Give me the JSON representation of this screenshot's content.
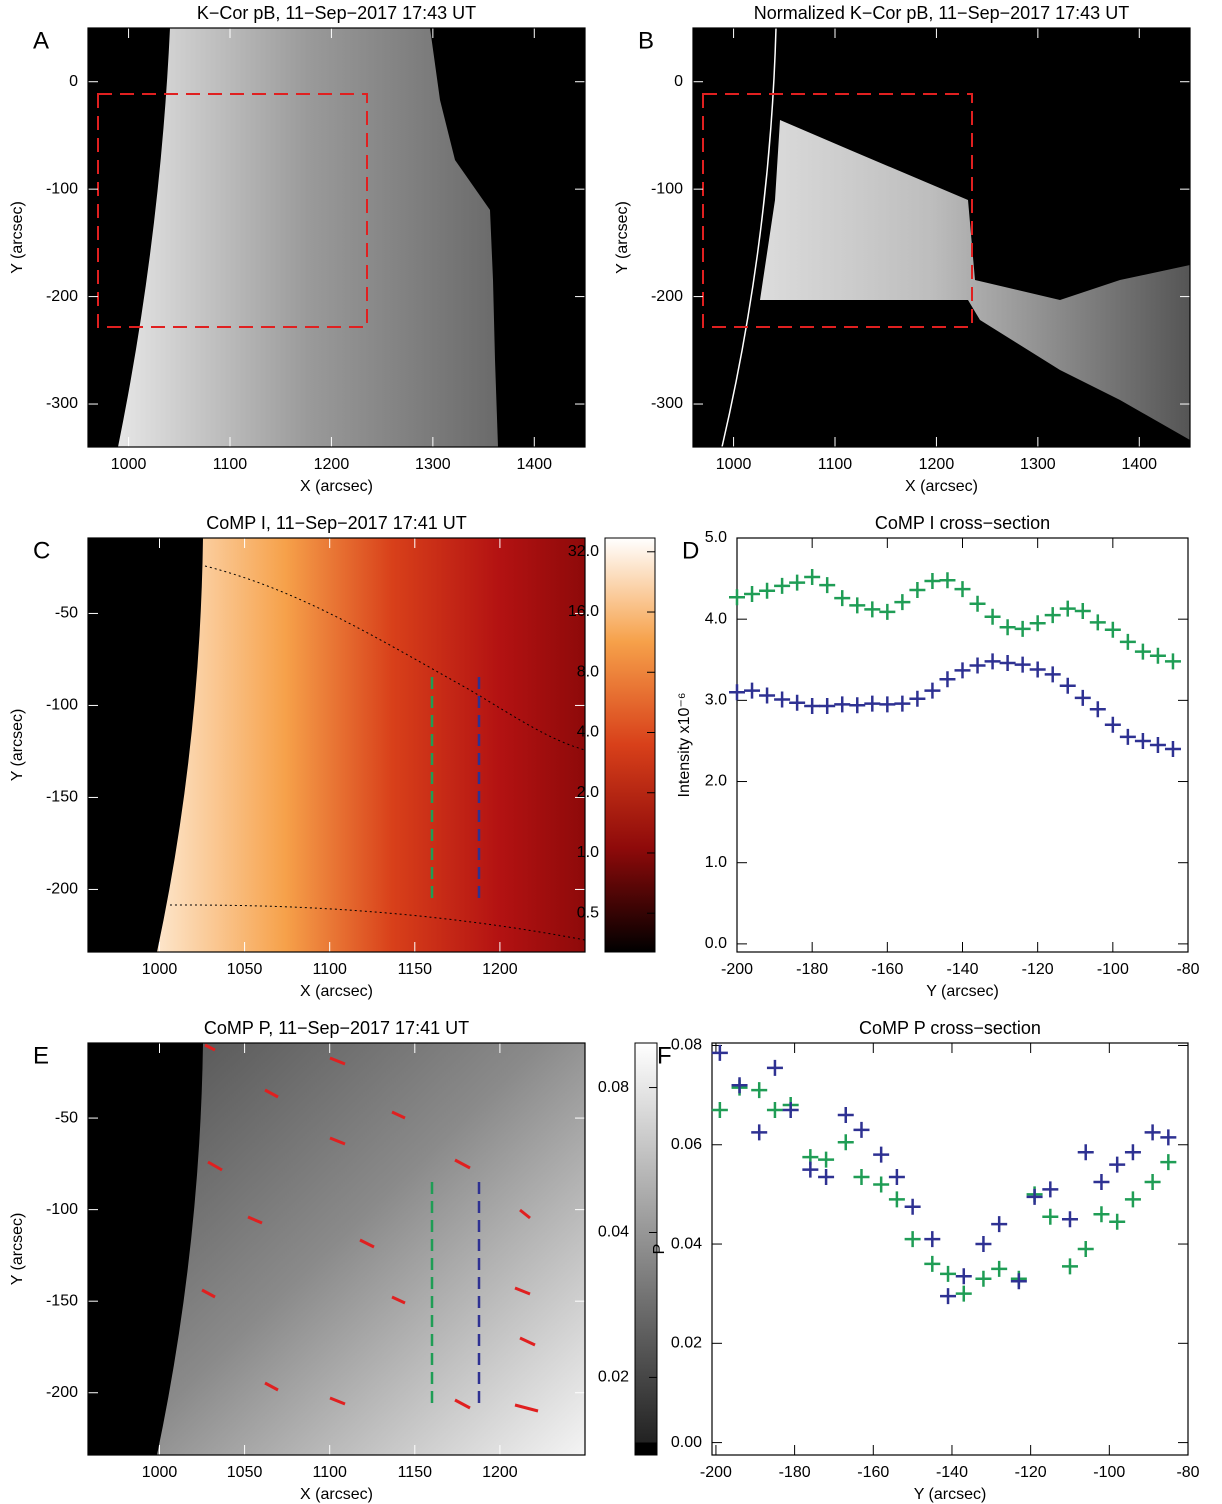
{
  "chart_data": [
    {
      "type": "image",
      "panel": "A",
      "title": "K−Cor pB, 11−Sep−2017 17:43 UT",
      "xlabel": "X (arcsec)",
      "ylabel": "Y (arcsec)",
      "xlim": [
        960,
        1450
      ],
      "ylim": [
        -340,
        50
      ],
      "xticks": [
        1000,
        1100,
        1200,
        1300,
        1400
      ],
      "yticks": [
        -300,
        -200,
        -100,
        0
      ]
    },
    {
      "type": "image",
      "panel": "B",
      "title": "Normalized K−Cor pB, 11−Sep−2017 17:43 UT",
      "xlabel": "X (arcsec)",
      "ylabel": "Y (arcsec)",
      "xlim": [
        960,
        1450
      ],
      "ylim": [
        -340,
        50
      ],
      "xticks": [
        1000,
        1100,
        1200,
        1300,
        1400
      ],
      "yticks": [
        -300,
        -200,
        -100,
        0
      ]
    },
    {
      "type": "image",
      "panel": "C",
      "title": "CoMP I, 11−Sep−2017 17:41 UT",
      "xlabel": "X (arcsec)",
      "ylabel": "Y (arcsec)",
      "xlim": [
        958,
        1250
      ],
      "ylim": [
        -234,
        -9
      ],
      "xticks": [
        1000,
        1050,
        1100,
        1150,
        1200
      ],
      "yticks": [
        -200,
        -150,
        -100,
        -50
      ],
      "colorbar": {
        "log": true,
        "lim": [
          0.32,
          37.5
        ],
        "ticks": [
          0.5,
          {
            "value": 1,
            "label": "1.0"
          },
          {
            "value": 2,
            "label": "2.0"
          },
          {
            "value": 4,
            "label": "4.0"
          },
          {
            "value": 8,
            "label": "8.0"
          },
          {
            "value": 16,
            "label": "16.0"
          },
          {
            "value": 32,
            "label": "32.0"
          }
        ]
      }
    },
    {
      "type": "scatter",
      "panel": "D",
      "title": "CoMP I cross−section",
      "xlabel": "Y (arcsec)",
      "ylabel": "Intensity x10⁻⁶",
      "xlim": [
        -200,
        -80
      ],
      "ylim": [
        -0.1,
        5.0
      ],
      "xticks": [
        -200,
        -180,
        -160,
        -140,
        -120,
        -100,
        -80
      ],
      "yticks": [
        {
          "value": 0,
          "label": "0.0"
        },
        {
          "value": 1,
          "label": "1.0"
        },
        {
          "value": 2,
          "label": "2.0"
        },
        {
          "value": 3,
          "label": "3.0"
        },
        {
          "value": 4,
          "label": "4.0"
        },
        {
          "value": 5,
          "label": "5.0"
        }
      ],
      "x": [
        -200,
        -196,
        -192,
        -188,
        -184,
        -180,
        -176,
        -172,
        -168,
        -164,
        -160,
        -156,
        -152,
        -148,
        -144,
        -140,
        -136,
        -132,
        -128,
        -124,
        -120,
        -116,
        -112,
        -108,
        -104,
        -100,
        -96,
        -92,
        -88,
        -84
      ],
      "series": [
        {
          "color": "#1f9d55",
          "values": [
            4.27,
            4.31,
            4.35,
            4.41,
            4.45,
            4.52,
            4.42,
            4.26,
            4.17,
            4.12,
            4.09,
            4.21,
            4.36,
            4.47,
            4.48,
            4.37,
            4.19,
            4.03,
            3.9,
            3.88,
            3.95,
            4.05,
            4.13,
            4.1,
            3.96,
            3.87,
            3.72,
            3.6,
            3.55,
            3.48
          ]
        },
        {
          "color": "#2e3192",
          "values": [
            3.1,
            3.12,
            3.06,
            3.01,
            2.97,
            2.93,
            2.93,
            2.95,
            2.94,
            2.96,
            2.95,
            2.96,
            3.02,
            3.12,
            3.26,
            3.37,
            3.43,
            3.48,
            3.46,
            3.44,
            3.38,
            3.32,
            3.18,
            3.03,
            2.89,
            2.7,
            2.55,
            2.5,
            2.45,
            2.4
          ]
        }
      ]
    },
    {
      "type": "image",
      "panel": "E",
      "title": "CoMP P, 11−Sep−2017 17:41 UT",
      "xlabel": "X (arcsec)",
      "ylabel": "Y (arcsec)",
      "xlim": [
        958,
        1250
      ],
      "ylim": [
        -234,
        -9
      ],
      "xticks": [
        1000,
        1050,
        1100,
        1150,
        1200
      ],
      "yticks": [
        -200,
        -150,
        -100,
        -50
      ],
      "colorbar": {
        "log": true,
        "lim": [
          0.0138,
          0.099
        ],
        "ticks": [
          0.02,
          0.04,
          0.08
        ]
      }
    },
    {
      "type": "scatter",
      "panel": "F",
      "title": "CoMP P cross−section",
      "xlabel": "Y (arcsec)",
      "ylabel": "P",
      "xlim": [
        -201,
        -80
      ],
      "ylim": [
        -0.0025,
        0.0805
      ],
      "xticks": [
        -200,
        -180,
        -160,
        -140,
        -120,
        -100,
        -80
      ],
      "yticks": [
        {
          "value": 0,
          "label": "0.00"
        },
        0.02,
        0.04,
        0.06,
        0.08
      ],
      "x": [
        -199,
        -194,
        -189,
        -185,
        -181,
        -176,
        -172,
        -167,
        -163,
        -158,
        -154,
        -150,
        -145,
        -141,
        -137,
        -132,
        -128,
        -123,
        -119,
        -115,
        -110,
        -106,
        -102,
        -98,
        -94,
        -89,
        -85
      ],
      "series": [
        {
          "color": "#1f9d55",
          "values": [
            0.067,
            0.0715,
            0.071,
            0.067,
            0.068,
            0.0575,
            0.057,
            0.0605,
            0.0535,
            0.052,
            0.049,
            0.041,
            0.036,
            0.034,
            0.03,
            0.033,
            0.035,
            0.033,
            0.05,
            0.0455,
            0.0355,
            0.039,
            0.046,
            0.0445,
            0.049,
            0.0525,
            0.0565
          ]
        },
        {
          "color": "#2e3192",
          "values": [
            0.0785,
            0.072,
            0.0625,
            0.0755,
            0.067,
            0.055,
            0.0535,
            0.066,
            0.063,
            0.058,
            0.0535,
            0.0475,
            0.041,
            0.0295,
            0.0335,
            0.04,
            0.044,
            0.0325,
            0.0495,
            0.051,
            0.045,
            0.0585,
            0.0525,
            0.056,
            0.0585,
            0.0625,
            0.0615
          ]
        }
      ]
    }
  ]
}
